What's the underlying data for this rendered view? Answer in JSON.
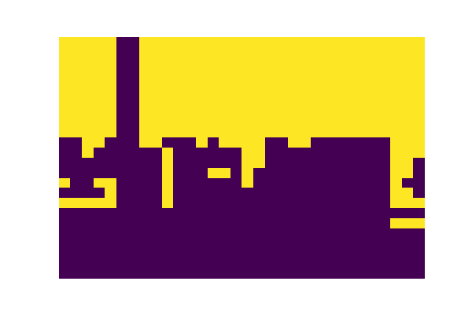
{
  "chart_data": {
    "type": "heatmap",
    "tick_labels": false,
    "color_range": [
      0,
      1
    ],
    "cells": [
      [
        1,
        1,
        1,
        1,
        1,
        0,
        0,
        1,
        1,
        1,
        1,
        1,
        1,
        1,
        1,
        1,
        1,
        1,
        1,
        1,
        1,
        1,
        1,
        1,
        1,
        1,
        1,
        1,
        1,
        1,
        1,
        1
      ],
      [
        1,
        1,
        1,
        1,
        1,
        0,
        0,
        1,
        1,
        1,
        1,
        1,
        1,
        1,
        1,
        1,
        1,
        1,
        1,
        1,
        1,
        1,
        1,
        1,
        1,
        1,
        1,
        1,
        1,
        1,
        1,
        1
      ],
      [
        1,
        1,
        1,
        1,
        1,
        0,
        0,
        1,
        1,
        1,
        1,
        1,
        1,
        1,
        1,
        1,
        1,
        1,
        1,
        1,
        1,
        1,
        1,
        1,
        1,
        1,
        1,
        1,
        1,
        1,
        1,
        1
      ],
      [
        1,
        1,
        1,
        1,
        1,
        0,
        0,
        1,
        1,
        1,
        1,
        1,
        1,
        1,
        1,
        1,
        1,
        1,
        1,
        1,
        1,
        1,
        1,
        1,
        1,
        1,
        1,
        1,
        1,
        1,
        1,
        1
      ],
      [
        1,
        1,
        1,
        1,
        1,
        0,
        0,
        1,
        1,
        1,
        1,
        1,
        1,
        1,
        1,
        1,
        1,
        1,
        1,
        1,
        1,
        1,
        1,
        1,
        1,
        1,
        1,
        1,
        1,
        1,
        1,
        1
      ],
      [
        1,
        1,
        1,
        1,
        1,
        0,
        0,
        1,
        1,
        1,
        1,
        1,
        1,
        1,
        1,
        1,
        1,
        1,
        1,
        1,
        1,
        1,
        1,
        1,
        1,
        1,
        1,
        1,
        1,
        1,
        1,
        1
      ],
      [
        1,
        1,
        1,
        1,
        1,
        0,
        0,
        1,
        1,
        1,
        1,
        1,
        1,
        1,
        1,
        1,
        1,
        1,
        1,
        1,
        1,
        1,
        1,
        1,
        1,
        1,
        1,
        1,
        1,
        1,
        1,
        1
      ],
      [
        1,
        1,
        1,
        1,
        1,
        0,
        0,
        1,
        1,
        1,
        1,
        1,
        1,
        1,
        1,
        1,
        1,
        1,
        1,
        1,
        1,
        1,
        1,
        1,
        1,
        1,
        1,
        1,
        1,
        1,
        1,
        1
      ],
      [
        1,
        1,
        1,
        1,
        1,
        0,
        0,
        1,
        1,
        1,
        1,
        1,
        1,
        1,
        1,
        1,
        1,
        1,
        1,
        1,
        1,
        1,
        1,
        1,
        1,
        1,
        1,
        1,
        1,
        1,
        1,
        1
      ],
      [
        1,
        1,
        1,
        1,
        1,
        0,
        0,
        1,
        1,
        1,
        1,
        1,
        1,
        1,
        1,
        1,
        1,
        1,
        1,
        1,
        1,
        1,
        1,
        1,
        1,
        1,
        1,
        1,
        1,
        1,
        1,
        1
      ],
      [
        0,
        0,
        1,
        1,
        0,
        0,
        0,
        1,
        1,
        0,
        0,
        0,
        1,
        0,
        1,
        1,
        1,
        1,
        0,
        0,
        1,
        1,
        0,
        0,
        0,
        0,
        0,
        0,
        0,
        1,
        1,
        1
      ],
      [
        0,
        0,
        1,
        0,
        0,
        0,
        0,
        0,
        0,
        1,
        0,
        0,
        0,
        0,
        0,
        0,
        1,
        1,
        0,
        0,
        0,
        0,
        0,
        0,
        0,
        0,
        0,
        0,
        0,
        1,
        1,
        1
      ],
      [
        0,
        0,
        0,
        0,
        0,
        0,
        0,
        0,
        0,
        1,
        0,
        0,
        0,
        0,
        0,
        0,
        1,
        1,
        0,
        0,
        0,
        0,
        0,
        0,
        0,
        0,
        0,
        0,
        0,
        1,
        1,
        0
      ],
      [
        0,
        0,
        0,
        0,
        0,
        0,
        0,
        0,
        0,
        1,
        0,
        0,
        0,
        1,
        1,
        0,
        1,
        0,
        0,
        0,
        0,
        0,
        0,
        0,
        0,
        0,
        0,
        0,
        0,
        1,
        1,
        0
      ],
      [
        1,
        0,
        0,
        1,
        1,
        0,
        0,
        0,
        0,
        1,
        0,
        0,
        0,
        0,
        0,
        0,
        1,
        0,
        0,
        0,
        0,
        0,
        0,
        0,
        0,
        0,
        0,
        0,
        0,
        1,
        0,
        0
      ],
      [
        0,
        0,
        0,
        0,
        1,
        0,
        0,
        0,
        0,
        1,
        0,
        0,
        0,
        0,
        0,
        0,
        0,
        0,
        0,
        0,
        0,
        0,
        0,
        0,
        0,
        0,
        0,
        0,
        0,
        1,
        1,
        0
      ],
      [
        1,
        1,
        1,
        1,
        1,
        0,
        0,
        0,
        0,
        1,
        0,
        0,
        0,
        0,
        0,
        0,
        0,
        0,
        0,
        0,
        0,
        0,
        0,
        0,
        0,
        0,
        0,
        0,
        0,
        1,
        1,
        1
      ],
      [
        0,
        0,
        0,
        0,
        0,
        0,
        0,
        0,
        0,
        0,
        0,
        0,
        0,
        0,
        0,
        0,
        0,
        0,
        0,
        0,
        0,
        0,
        0,
        0,
        0,
        0,
        0,
        0,
        0,
        0,
        0,
        0
      ],
      [
        0,
        0,
        0,
        0,
        0,
        0,
        0,
        0,
        0,
        0,
        0,
        0,
        0,
        0,
        0,
        0,
        0,
        0,
        0,
        0,
        0,
        0,
        0,
        0,
        0,
        0,
        0,
        0,
        0,
        1,
        1,
        1
      ],
      [
        0,
        0,
        0,
        0,
        0,
        0,
        0,
        0,
        0,
        0,
        0,
        0,
        0,
        0,
        0,
        0,
        0,
        0,
        0,
        0,
        0,
        0,
        0,
        0,
        0,
        0,
        0,
        0,
        0,
        0,
        0,
        0
      ],
      [
        0,
        0,
        0,
        0,
        0,
        0,
        0,
        0,
        0,
        0,
        0,
        0,
        0,
        0,
        0,
        0,
        0,
        0,
        0,
        0,
        0,
        0,
        0,
        0,
        0,
        0,
        0,
        0,
        0,
        0,
        0,
        0
      ],
      [
        0,
        0,
        0,
        0,
        0,
        0,
        0,
        0,
        0,
        0,
        0,
        0,
        0,
        0,
        0,
        0,
        0,
        0,
        0,
        0,
        0,
        0,
        0,
        0,
        0,
        0,
        0,
        0,
        0,
        0,
        0,
        0
      ],
      [
        0,
        0,
        0,
        0,
        0,
        0,
        0,
        0,
        0,
        0,
        0,
        0,
        0,
        0,
        0,
        0,
        0,
        0,
        0,
        0,
        0,
        0,
        0,
        0,
        0,
        0,
        0,
        0,
        0,
        0,
        0,
        0
      ],
      [
        0,
        0,
        0,
        0,
        0,
        0,
        0,
        0,
        0,
        0,
        0,
        0,
        0,
        0,
        0,
        0,
        0,
        0,
        0,
        0,
        0,
        0,
        0,
        0,
        0,
        0,
        0,
        0,
        0,
        0,
        0,
        0
      ]
    ]
  }
}
